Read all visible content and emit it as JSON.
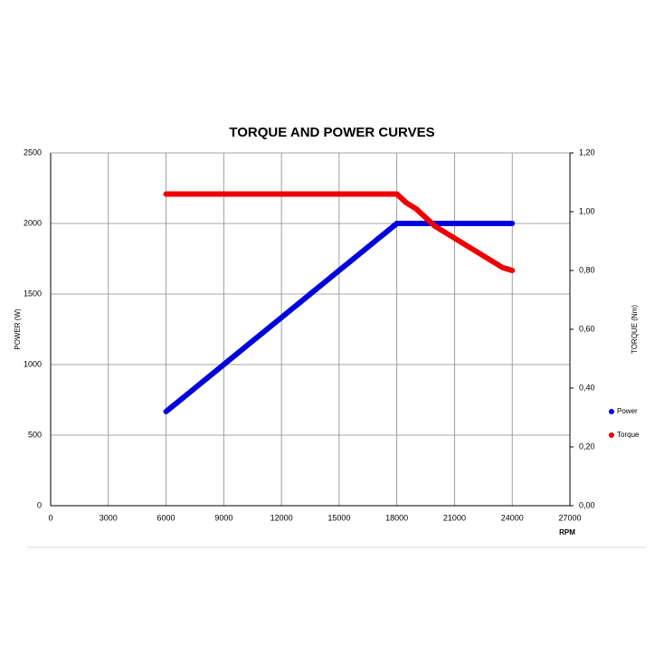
{
  "chart_data": {
    "type": "line",
    "title": "TORQUE AND POWER CURVES",
    "x_label": "RPM",
    "y_label": "POWER (W)",
    "y2_label": "TORQUE (Nm)",
    "x": [
      6000,
      6500,
      7000,
      7500,
      8000,
      8500,
      9000,
      9500,
      10000,
      10500,
      11000,
      11500,
      12000,
      12500,
      13000,
      13500,
      14000,
      14500,
      15000,
      15500,
      16000,
      16500,
      17000,
      17500,
      18000,
      18500,
      19000,
      19500,
      20000,
      20500,
      21000,
      21500,
      22000,
      22500,
      23000,
      23500,
      24000
    ],
    "series": [
      {
        "name": "Power",
        "color": "#0000dd",
        "values": [
          667,
          722,
          778,
          833,
          889,
          944,
          1000,
          1056,
          1111,
          1167,
          1222,
          1278,
          1333,
          1389,
          1444,
          1500,
          1556,
          1611,
          1667,
          1722,
          1778,
          1833,
          1889,
          1944,
          2000,
          2000,
          2000,
          2000,
          2000,
          2000,
          2000,
          2000,
          2000,
          2000,
          2000,
          2000,
          2000
        ]
      },
      {
        "name": "Torque",
        "color": "#ee0000",
        "axis": "y2",
        "values": [
          1.06,
          1.06,
          1.06,
          1.06,
          1.06,
          1.06,
          1.06,
          1.06,
          1.06,
          1.06,
          1.06,
          1.06,
          1.06,
          1.06,
          1.06,
          1.06,
          1.06,
          1.06,
          1.06,
          1.06,
          1.06,
          1.06,
          1.06,
          1.06,
          1.06,
          1.03,
          1.01,
          0.98,
          0.95,
          0.93,
          0.91,
          0.89,
          0.87,
          0.85,
          0.83,
          0.81,
          0.8
        ]
      }
    ],
    "xlim": [
      0,
      27000
    ],
    "xticks": [
      0,
      3000,
      6000,
      9000,
      12000,
      15000,
      18000,
      21000,
      24000,
      27000
    ],
    "ylim": [
      0,
      2500
    ],
    "yticks": [
      0,
      500,
      1000,
      1500,
      2000,
      2500
    ],
    "y2lim": [
      0,
      1.2
    ],
    "y2ticks": [
      {
        "value": 0,
        "label": "0,00"
      },
      {
        "value": 0.2,
        "label": "0,20"
      },
      {
        "value": 0.4,
        "label": "0,40"
      },
      {
        "value": 0.6,
        "label": "0,60"
      },
      {
        "value": 0.8,
        "label": "0,80"
      },
      {
        "value": 1.0,
        "label": "1,00"
      },
      {
        "value": 1.2,
        "label": "1,20"
      }
    ],
    "grid": true,
    "legend": "right"
  }
}
